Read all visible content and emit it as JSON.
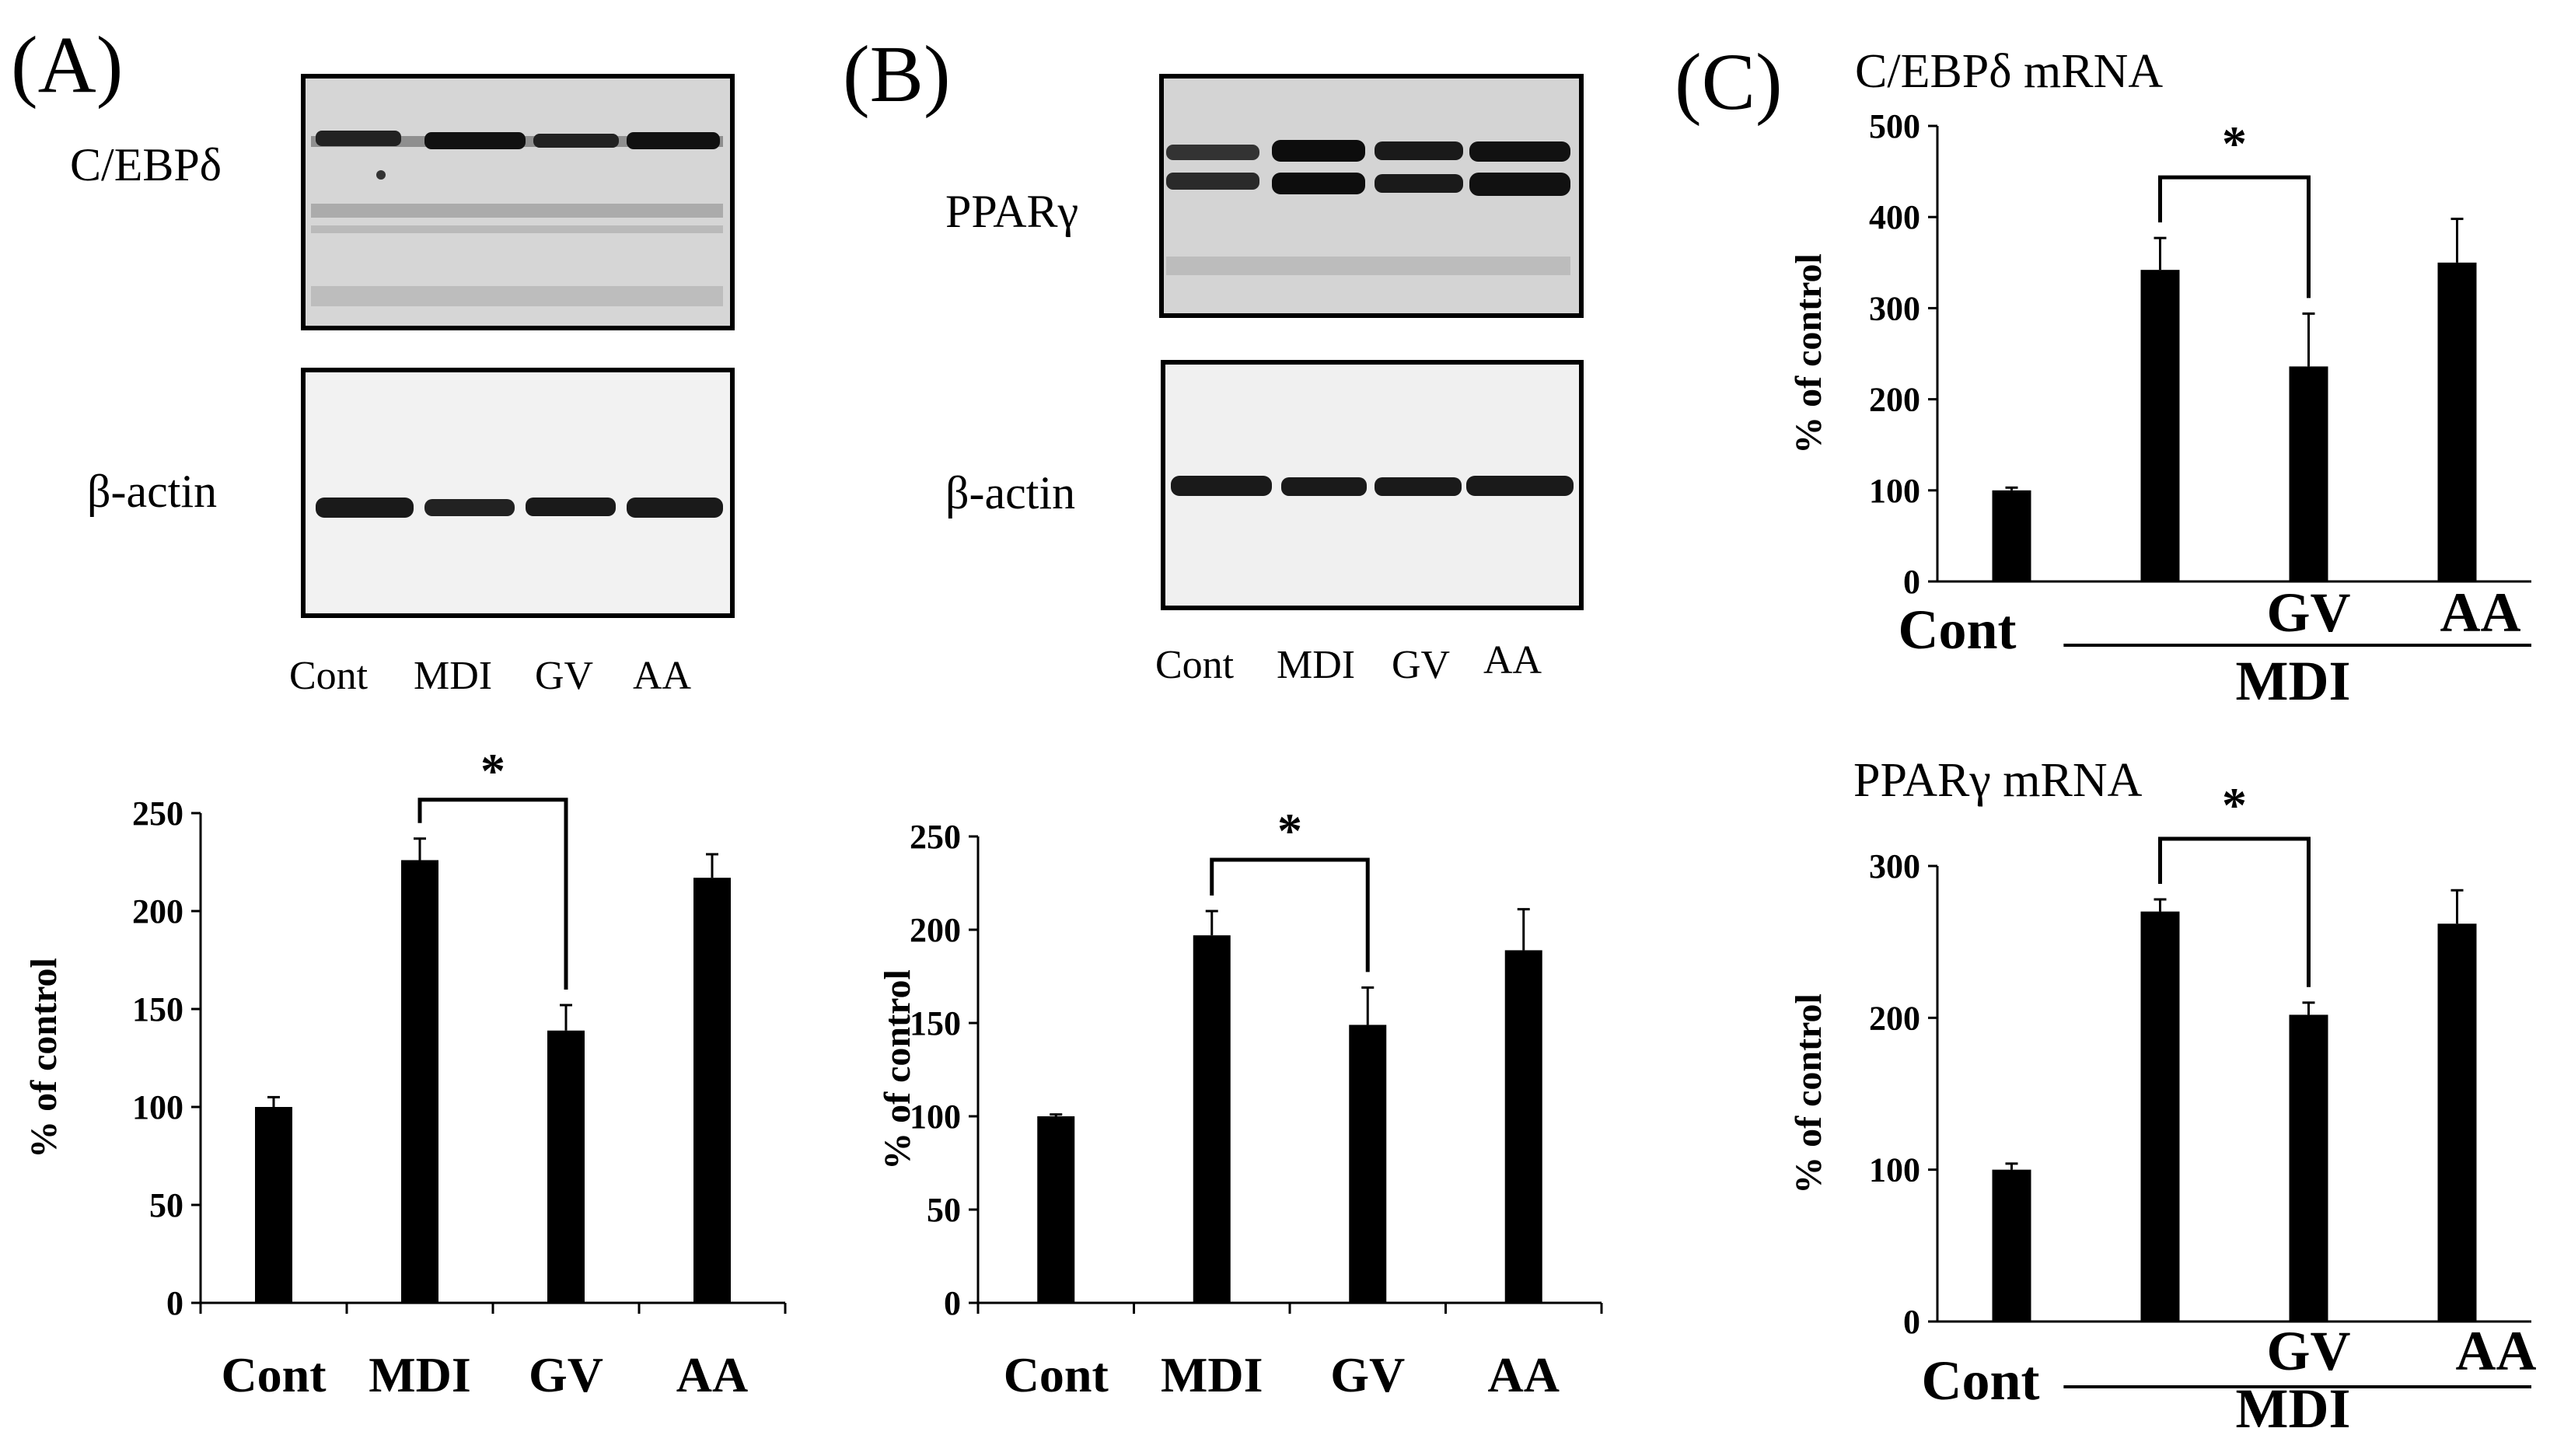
{
  "figure": {
    "colors": {
      "bar": "#000000",
      "axis": "#000000",
      "text": "#000000",
      "background": "#ffffff"
    },
    "panels": [
      {
        "label": "(A)",
        "blot": {
          "target_label": "C/EBPδ",
          "loading_label": "β-actin",
          "lane_labels": [
            "Cont",
            "MDI",
            "GV",
            "AA"
          ]
        }
      },
      {
        "label": "(B)",
        "blot": {
          "target_label": "PPARγ",
          "loading_label": "β-actin",
          "lane_labels": [
            "Cont",
            "MDI",
            "GV",
            "AA"
          ]
        }
      },
      {
        "label": "(C)"
      }
    ]
  },
  "chart_data": [
    {
      "id": "A-protein",
      "type": "bar",
      "title": "",
      "categories": [
        "Cont",
        "MDI",
        "GV",
        "AA"
      ],
      "values": [
        100,
        226,
        139,
        217
      ],
      "errors": [
        5,
        11,
        13,
        12
      ],
      "ylabel": "% of control",
      "xlabel": "",
      "ylim": [
        0,
        250
      ],
      "yticks": [
        "0",
        "50",
        "100",
        "150",
        "200",
        "250"
      ],
      "significance": {
        "from": "MDI",
        "to": "GV",
        "label": "*"
      }
    },
    {
      "id": "B-protein",
      "type": "bar",
      "title": "",
      "categories": [
        "Cont",
        "MDI",
        "GV",
        "AA"
      ],
      "values": [
        100,
        197,
        149,
        189
      ],
      "errors": [
        1,
        13,
        20,
        22
      ],
      "ylabel": "% of control",
      "xlabel": "",
      "ylim": [
        0,
        250
      ],
      "yticks": [
        "0",
        "50",
        "100",
        "150",
        "200",
        "250"
      ],
      "significance": {
        "from": "MDI",
        "to": "GV",
        "label": "*"
      }
    },
    {
      "id": "C-cebpd-mrna",
      "type": "bar",
      "title": "C/EBPδ mRNA",
      "categories": [
        "Cont",
        "MDI",
        "GV",
        "AA"
      ],
      "values": [
        100,
        342,
        236,
        350
      ],
      "errors": [
        3,
        35,
        58,
        48
      ],
      "ylabel": "% of control",
      "xlabel": "MDI",
      "ylim": [
        0,
        500
      ],
      "yticks": [
        "0",
        "100",
        "200",
        "300",
        "400",
        "500"
      ],
      "significance": {
        "from": "MDI",
        "to": "GV",
        "label": "*"
      },
      "tick_labels": [
        "Cont",
        "GV",
        "AA"
      ],
      "group_label": "MDI"
    },
    {
      "id": "C-pparg-mrna",
      "type": "bar",
      "title": "PPARγ mRNA",
      "categories": [
        "Cont",
        "MDI",
        "GV",
        "AA"
      ],
      "values": [
        100,
        270,
        202,
        262
      ],
      "errors": [
        4,
        8,
        8,
        22
      ],
      "ylabel": "% of control",
      "xlabel": "MDI",
      "ylim": [
        0,
        300
      ],
      "yticks": [
        "0",
        "100",
        "200",
        "300"
      ],
      "significance": {
        "from": "MDI",
        "to": "GV",
        "label": "*"
      },
      "tick_labels": [
        "Cont",
        "GV",
        "AA"
      ],
      "group_label": "MDI"
    }
  ]
}
